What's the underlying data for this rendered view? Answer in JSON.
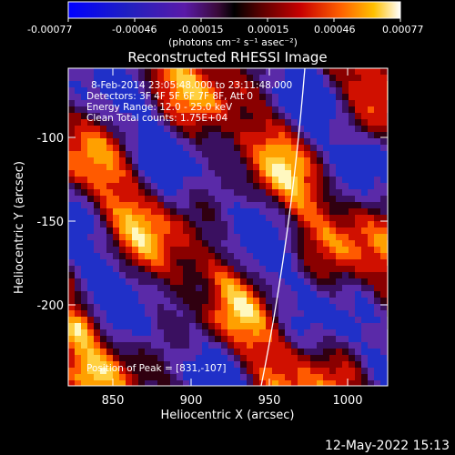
{
  "colorbar": {
    "ticks": [
      "-0.00077",
      "-0.00046",
      "-0.00015",
      "0.00015",
      "0.00046",
      "0.00077"
    ],
    "units_label": "(photons cm⁻² s⁻¹ asec⁻²)"
  },
  "title": "Reconstructed RHESSI Image",
  "annotations": {
    "time_range": "8-Feb-2014 23:05:48.000 to 23:11:48.000",
    "detectors": "Detectors: 3F 4F 5F 6F 7F 8F, Att 0",
    "energy": "Energy Range: 12.0 - 25.0 keV",
    "clean": "Clean    Total counts: 1.75E+04",
    "peak": "Position of Peak = [831,-107]"
  },
  "axes": {
    "xlabel": "Heliocentric X (arcsec)",
    "ylabel": "Heliocentric Y (arcsec)",
    "xticks": [
      "850",
      "900",
      "950",
      "1000"
    ],
    "yticks": [
      "-100",
      "-150",
      "-200"
    ]
  },
  "timestamp": "12-May-2022 15:13"
}
